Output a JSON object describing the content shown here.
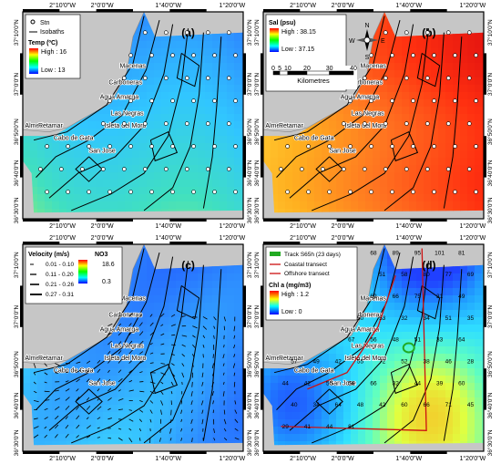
{
  "panels": {
    "a": {
      "letter": "(a)",
      "legend_stn": "Stn",
      "legend_isobaths": "Isobaths",
      "legend_title": "Temp (ºC)",
      "legend_high": "High : 16",
      "legend_low": "Low : 13"
    },
    "b": {
      "letter": "(b)",
      "legend_title": "Sal (psu)",
      "legend_high": "High : 38.15",
      "legend_low": "Low : 37.15",
      "scale_ticks": [
        "0",
        "5",
        "10",
        "20",
        "30",
        "40"
      ],
      "scale_unit": "Kilometres",
      "compass": {
        "n": "N",
        "s": "S",
        "e": "E",
        "w": "W"
      }
    },
    "c": {
      "letter": "(c)",
      "vel_title": "Velocity (m/s)",
      "vel_classes": [
        "0.01 - 0.10",
        "0.11 - 0.20",
        "0.21 - 0.26",
        "0.27 - 0.31"
      ],
      "no3_title": "NO3",
      "no3_high": "18.6",
      "no3_low": "0.3"
    },
    "d": {
      "letter": "(d)",
      "track_label": "Track S65h (23 days)",
      "coastal_label": "Coastal transect",
      "offshore_label": "Offshore transect",
      "chl_title": "Chl a (mg/m3)",
      "chl_high": "High : 1.2",
      "chl_low": "Low : 0"
    }
  },
  "places": {
    "almeria": "Almeria",
    "retamar": "Retamar",
    "cabo_gata": "Cabo de Gata",
    "san_jose": "San Jose",
    "isleta": "Isleta del Moro",
    "las_negras": "Las Negras",
    "agua_amarga": "Agua Amarga",
    "carboneras": "Carboneras",
    "macenas": "Macenas"
  },
  "axes": {
    "top_ticks": [
      "2°10'0\"W",
      "2°0'0\"W",
      "1°40'0\"W",
      "1°20'0\"W"
    ],
    "side_ticks": [
      "37°10'0\"N",
      "37°0'0\"N",
      "36°50'0\"N",
      "36°40'0\"N",
      "36°30'0\"N"
    ]
  },
  "panel_d_values": [
    "46",
    "58",
    "60",
    "61",
    "68",
    "89",
    "95",
    "101",
    "81",
    "80",
    "102",
    "70",
    "84",
    "51",
    "58",
    "80",
    "77",
    "69",
    "45",
    "39",
    "48",
    "35",
    "69",
    "66",
    "75",
    "31",
    "49",
    "65",
    "56",
    "48",
    "50",
    "53",
    "32",
    "34",
    "51",
    "35",
    "47",
    "69",
    "79",
    "67",
    "56",
    "48",
    "51",
    "33",
    "64",
    "57",
    "49",
    "42",
    "55",
    "72",
    "52",
    "38",
    "46",
    "28",
    "44",
    "42",
    "50",
    "56",
    "66",
    "32",
    "44",
    "39",
    "60",
    "40",
    "34",
    "64",
    "48",
    "42",
    "60",
    "66",
    "71",
    "45",
    "29",
    "41",
    "44",
    "81"
  ],
  "colors": {
    "land": "#c6c6c6",
    "frame": "#000000",
    "track": "#22aa22",
    "transect": "#cc1111",
    "temp_ramp": [
      "#0000ff",
      "#00ffff",
      "#00ff00",
      "#ffff00",
      "#ff0000"
    ],
    "chl_ramp": [
      "#0000ff",
      "#00ffff",
      "#ffff00",
      "#ff0000"
    ]
  }
}
